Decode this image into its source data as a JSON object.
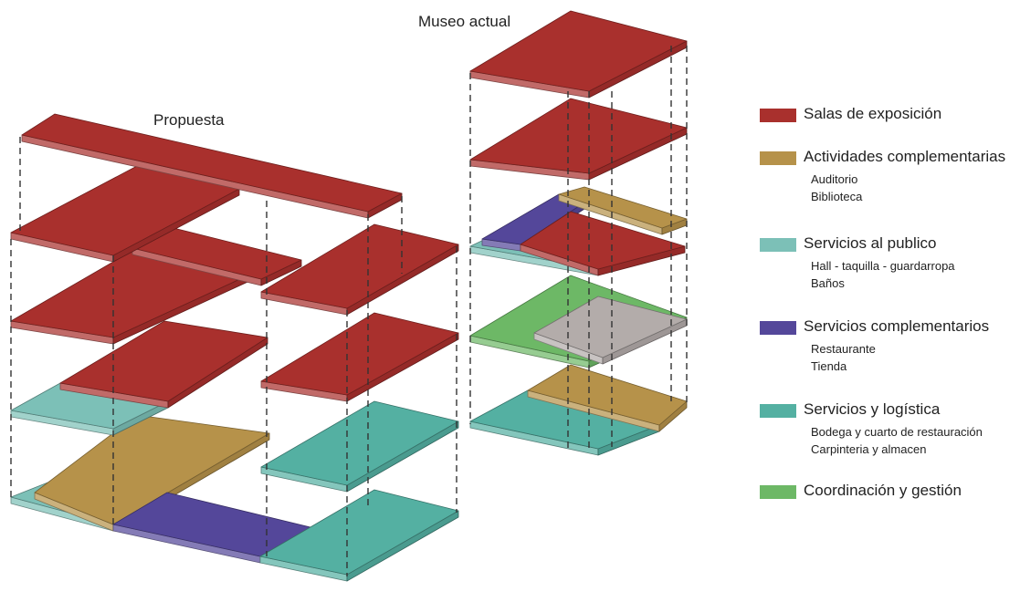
{
  "titles": {
    "propuesta": "Propuesta",
    "museo_actual": "Museo actual"
  },
  "colors": {
    "salas": "#a9302d",
    "actividades": "#b6924a",
    "servicios_publico": "#7cc0b7",
    "servicios_complementarios": "#54479a",
    "servicios_logistica": "#54b0a2",
    "coordinacion": "#6db866",
    "unassigned": "#b3acaa"
  },
  "legend": [
    {
      "label": "Salas de exposición",
      "color": "#a9302d",
      "sub": []
    },
    {
      "label": "Actividades complementarias",
      "color": "#b6924a",
      "sub": [
        "Auditorio",
        "Biblioteca"
      ]
    },
    {
      "label": "Servicios al publico",
      "color": "#7cc0b7",
      "sub": [
        "Hall - taquilla - guardarropa",
        "Baños"
      ]
    },
    {
      "label": "Servicios complementarios",
      "color": "#54479a",
      "sub": [
        "Restaurante",
        "Tienda"
      ]
    },
    {
      "label": "Servicios y logística",
      "color": "#54b0a2",
      "sub": [
        "Bodega y cuarto de restauración",
        "Carpinteria y almacen"
      ]
    },
    {
      "label": "Coordinación y gestión",
      "color": "#6db866",
      "sub": []
    }
  ]
}
